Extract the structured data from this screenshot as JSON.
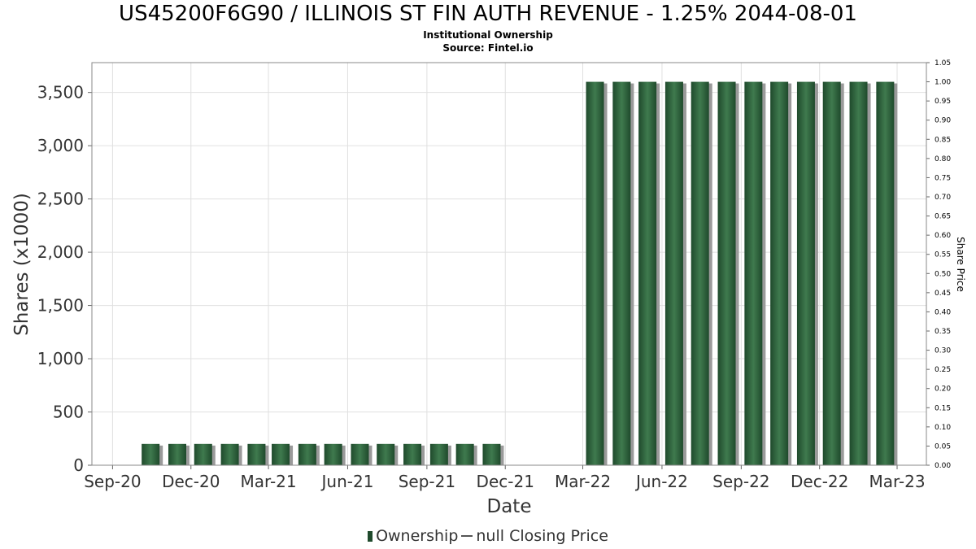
{
  "title": "US45200F6G90 / ILLINOIS ST FIN AUTH REVENUE - 1.25% 2044-08-01",
  "subtitle1": "Institutional Ownership",
  "subtitle2": "Source: Fintel.io",
  "legend": {
    "ownership": "Ownership",
    "price": "null Closing Price"
  },
  "colors": {
    "bar": "#1f4a2c",
    "bar_highlight": "#3f7a4e",
    "bar_shadow": "#9a9a9a",
    "grid": "#e0e0e0",
    "frame": "#888888"
  },
  "chart_data": {
    "type": "bar",
    "xlabel": "Date",
    "ylabel": "Shares (x1000)",
    "y2label": "Share Price",
    "ylim": [
      0,
      3780
    ],
    "y2lim": [
      0,
      1.05
    ],
    "xlim": [
      "2020-08-08",
      "2023-04-04"
    ],
    "x_ticks": [
      {
        "label": "Sep-20",
        "date": "2020-09-01"
      },
      {
        "label": "Dec-20",
        "date": "2020-12-01"
      },
      {
        "label": "Mar-21",
        "date": "2021-03-01"
      },
      {
        "label": "Jun-21",
        "date": "2021-06-01"
      },
      {
        "label": "Sep-21",
        "date": "2021-09-01"
      },
      {
        "label": "Dec-21",
        "date": "2021-12-01"
      },
      {
        "label": "Mar-22",
        "date": "2022-03-01"
      },
      {
        "label": "Jun-22",
        "date": "2022-06-01"
      },
      {
        "label": "Sep-22",
        "date": "2022-09-01"
      },
      {
        "label": "Dec-22",
        "date": "2022-12-01"
      },
      {
        "label": "Mar-23",
        "date": "2023-03-01"
      }
    ],
    "y_ticks": [
      0,
      500,
      1000,
      1500,
      2000,
      2500,
      3000,
      3500
    ],
    "y_tick_labels": [
      "0",
      "500",
      "1,000",
      "1,500",
      "2,000",
      "2,500",
      "3,000",
      "3,500"
    ],
    "y2_ticks": [
      "0.00",
      "0.05",
      "0.10",
      "0.15",
      "0.20",
      "0.25",
      "0.30",
      "0.35",
      "0.40",
      "0.45",
      "0.50",
      "0.55",
      "0.60",
      "0.65",
      "0.70",
      "0.75",
      "0.80",
      "0.85",
      "0.90",
      "0.95",
      "1.00",
      "1.05"
    ],
    "series": [
      {
        "name": "Ownership",
        "x": [
          "2020-10-01",
          "2020-11-01",
          "2020-12-01",
          "2021-01-01",
          "2021-02-01",
          "2021-03-01",
          "2021-04-01",
          "2021-05-01",
          "2021-06-01",
          "2021-07-01",
          "2021-08-01",
          "2021-09-01",
          "2021-10-01",
          "2021-11-01",
          "2022-03-01",
          "2022-04-01",
          "2022-05-01",
          "2022-06-01",
          "2022-07-01",
          "2022-08-01",
          "2022-09-01",
          "2022-10-01",
          "2022-11-01",
          "2022-12-01",
          "2023-01-01",
          "2023-02-01"
        ],
        "values": [
          200,
          200,
          200,
          200,
          200,
          200,
          200,
          200,
          200,
          200,
          200,
          200,
          200,
          200,
          3600,
          3600,
          3600,
          3600,
          3600,
          3600,
          3600,
          3600,
          3600,
          3600,
          3600,
          3600
        ]
      }
    ],
    "grid": true
  }
}
